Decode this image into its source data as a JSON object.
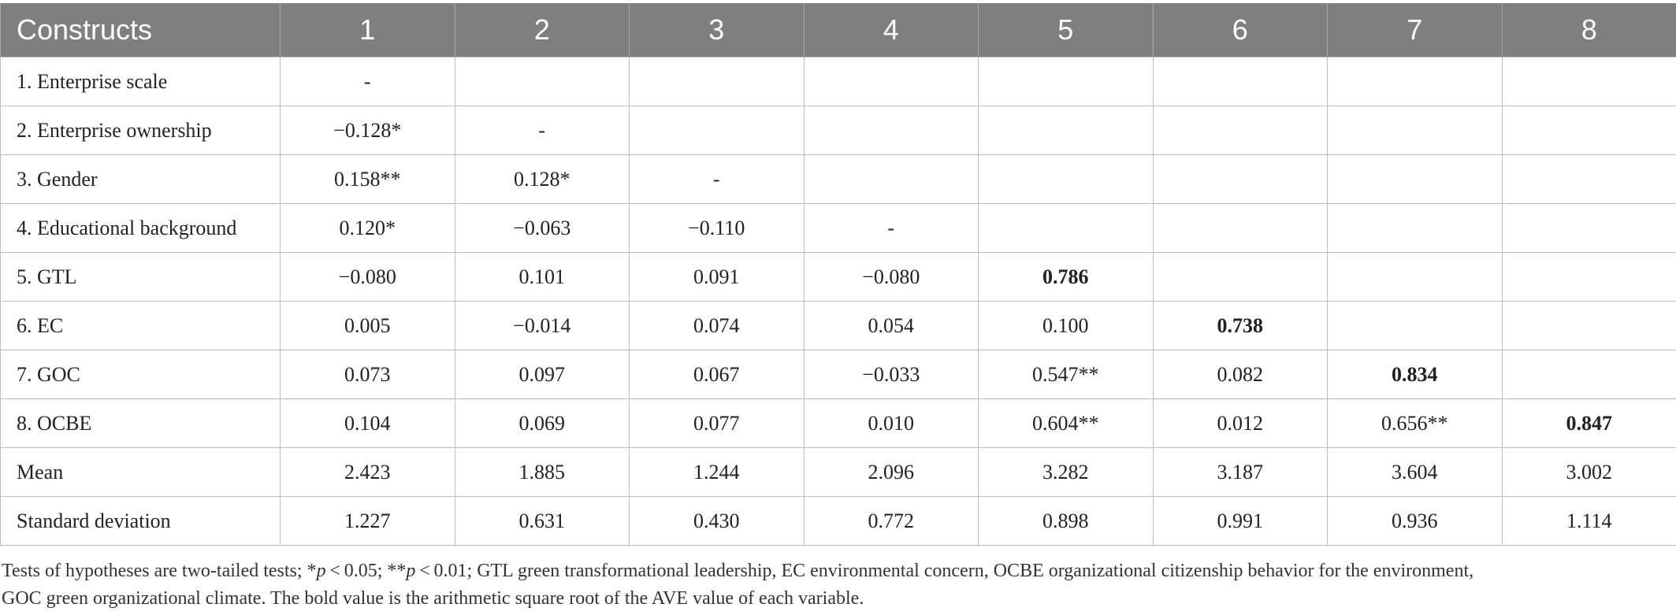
{
  "table": {
    "headers": [
      "Constructs",
      "1",
      "2",
      "3",
      "4",
      "5",
      "6",
      "7",
      "8"
    ],
    "rows": [
      {
        "label": "1. Enterprise scale",
        "cells": [
          "-",
          "",
          "",
          "",
          "",
          "",
          "",
          ""
        ]
      },
      {
        "label": "2. Enterprise ownership",
        "cells": [
          "−0.128*",
          "-",
          "",
          "",
          "",
          "",
          "",
          ""
        ]
      },
      {
        "label": "3. Gender",
        "cells": [
          "0.158**",
          "0.128*",
          "-",
          "",
          "",
          "",
          "",
          ""
        ]
      },
      {
        "label": "4. Educational background",
        "cells": [
          "0.120*",
          "−0.063",
          "−0.110",
          "-",
          "",
          "",
          "",
          ""
        ]
      },
      {
        "label": "5. GTL",
        "cells": [
          "−0.080",
          "0.101",
          "0.091",
          "−0.080",
          "0.786",
          "",
          "",
          ""
        ]
      },
      {
        "label": "6. EC",
        "cells": [
          "0.005",
          "−0.014",
          "0.074",
          "0.054",
          "0.100",
          "0.738",
          "",
          ""
        ]
      },
      {
        "label": "7. GOC",
        "cells": [
          "0.073",
          "0.097",
          "0.067",
          "−0.033",
          "0.547**",
          "0.082",
          "0.834",
          ""
        ]
      },
      {
        "label": "8. OCBE",
        "cells": [
          "0.104",
          "0.069",
          "0.077",
          "0.010",
          "0.604**",
          "0.012",
          "0.656**",
          "0.847"
        ]
      },
      {
        "label": "Mean",
        "cells": [
          "2.423",
          "1.885",
          "1.244",
          "2.096",
          "3.282",
          "3.187",
          "3.604",
          "3.002"
        ]
      },
      {
        "label": "Standard deviation",
        "cells": [
          "1.227",
          "0.631",
          "0.430",
          "0.772",
          "0.898",
          "0.991",
          "0.936",
          "1.114"
        ]
      }
    ]
  },
  "footnote": {
    "line1_a": "Tests of hypotheses are two-tailed tests; *",
    "p1": "p",
    "line1_b": " < 0.05; **",
    "p2": "p",
    "line1_c": " < 0.01; GTL green transformational leadership, EC environmental concern, OCBE organizational citizenship behavior for the environment,",
    "line2": "GOC green organizational climate. The bold value is the arithmetic square root of the AVE value of each variable."
  }
}
